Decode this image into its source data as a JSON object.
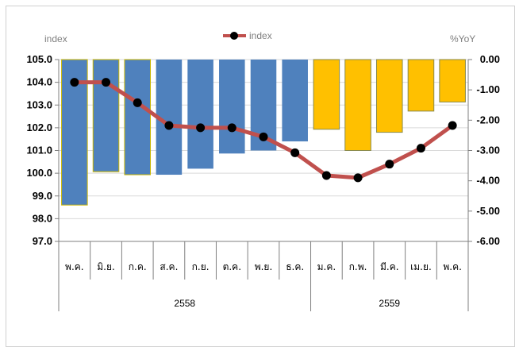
{
  "chart_data": {
    "type": "bar+line",
    "left_axis_label": "index",
    "right_axis_label": "%YoY",
    "legend": {
      "label": "index",
      "position": "top-center",
      "color": "#c0504d"
    },
    "categories": [
      "พ.ค.",
      "มิ.ย.",
      "ก.ค.",
      "ส.ค.",
      "ก.ย.",
      "ต.ค.",
      "พ.ย.",
      "ธ.ค.",
      "ม.ค.",
      "ก.พ.",
      "มี.ค.",
      "เม.ย.",
      "พ.ค."
    ],
    "year_groups": [
      {
        "label": "2558",
        "count": 8
      },
      {
        "label": "2559",
        "count": 5
      }
    ],
    "yoy_bars": {
      "values": [
        -4.8,
        -3.7,
        -3.8,
        -3.8,
        -3.6,
        -3.1,
        -3.0,
        -2.7,
        -2.3,
        -3.0,
        -2.4,
        -1.7,
        -1.4
      ],
      "colors": [
        "#4f81bd",
        "#4f81bd",
        "#4f81bd",
        "#4f81bd",
        "#4f81bd",
        "#4f81bd",
        "#4f81bd",
        "#4f81bd",
        "#ffc000",
        "#ffc000",
        "#ffc000",
        "#ffc000",
        "#ffc000"
      ],
      "outline": [
        "#c9b600",
        "#c9b600",
        "#c9b600",
        "none",
        "none",
        "none",
        "none",
        "none",
        "#8a8a4a",
        "#8a8a4a",
        "#8a8a4a",
        "#8a8a4a",
        "#8a8a4a"
      ]
    },
    "index_line": {
      "name": "index",
      "values": [
        104.0,
        104.0,
        103.1,
        102.1,
        102.0,
        102.0,
        101.6,
        100.9,
        99.9,
        99.8,
        100.4,
        101.1,
        102.1
      ],
      "color": "#c0504d"
    },
    "left_axis": {
      "min": 97.0,
      "max": 105.0,
      "ticks": [
        "105.0",
        "104.0",
        "103.0",
        "102.0",
        "101.0",
        "100.0",
        "99.0",
        "98.0",
        "97.0"
      ]
    },
    "right_axis": {
      "min": -6.0,
      "max": 0.0,
      "ticks": [
        "0.00",
        "-1.00",
        "-2.00",
        "-3.00",
        "-4.00",
        "-5.00",
        "-6.00"
      ]
    },
    "grid": true
  }
}
